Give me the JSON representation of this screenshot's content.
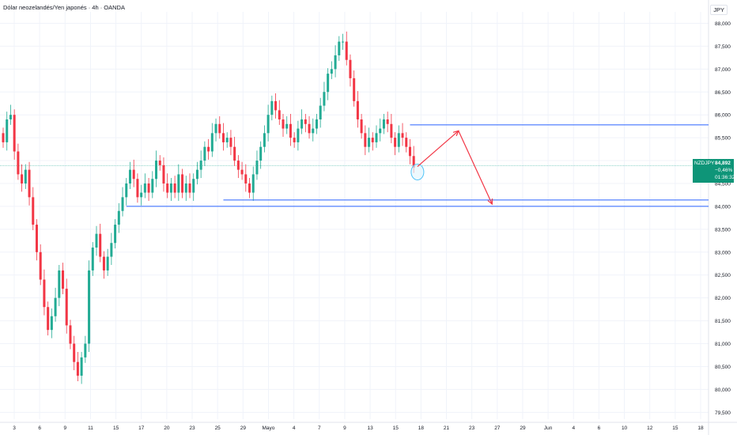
{
  "header": {
    "title": "Dólar neozelandés/Yen japonés · 4h · OANDA",
    "currency": "JPY"
  },
  "badge": {
    "symbol": "NZDJPY",
    "price": "84,892",
    "change": "−0,46%",
    "countdown": "01:36:32"
  },
  "colors": {
    "up": "#22ab94",
    "down": "#f23645",
    "level_line": "#2962ff",
    "arrow": "#f23645",
    "circle": "#4fc3f7",
    "price_line": "#22ab94",
    "grid": "#f0f3fa"
  },
  "chart_data": {
    "type": "candlestick",
    "title": "Dólar neozelandés/Yen japonés · 4h · OANDA",
    "y_unit": "JPY",
    "ylim": [
      79.35,
      88.25
    ],
    "y_ticks": [
      "88,000",
      "87,500",
      "87,000",
      "86,500",
      "86,000",
      "85,500",
      "85,000",
      "84,500",
      "84,000",
      "83,500",
      "83,000",
      "82,500",
      "82,000",
      "81,500",
      "81,000",
      "80,500",
      "80,000",
      "79,500"
    ],
    "x_ticks": [
      "3",
      "6",
      "9",
      "11",
      "15",
      "17",
      "20",
      "23",
      "25",
      "29",
      "Mayo",
      "4",
      "7",
      "9",
      "13",
      "15",
      "18",
      "21",
      "23",
      "27",
      "29",
      "Jun",
      "4",
      "6",
      "10",
      "12",
      "15",
      "18"
    ],
    "last_price": 84.892,
    "closes": [
      85.4,
      85.9,
      86.0,
      85.2,
      84.7,
      84.5,
      84.8,
      84.2,
      83.6,
      83.0,
      82.4,
      81.8,
      81.3,
      81.6,
      82.0,
      82.6,
      82.2,
      81.4,
      81.0,
      80.6,
      80.3,
      80.7,
      81.0,
      82.6,
      83.1,
      83.4,
      82.9,
      82.6,
      82.9,
      83.2,
      83.6,
      83.9,
      84.2,
      84.5,
      84.8,
      84.6,
      84.2,
      84.3,
      84.5,
      84.3,
      84.6,
      85.0,
      84.9,
      84.5,
      84.3,
      84.5,
      84.3,
      84.7,
      84.3,
      84.5,
      84.3,
      84.6,
      84.8,
      85.0,
      85.3,
      85.2,
      85.6,
      85.8,
      85.6,
      85.4,
      85.5,
      85.3,
      85.0,
      84.8,
      84.7,
      84.5,
      84.3,
      84.7,
      85.0,
      85.3,
      85.6,
      86.0,
      86.3,
      86.1,
      85.9,
      85.7,
      85.8,
      85.5,
      85.4,
      85.7,
      85.9,
      85.8,
      85.6,
      85.7,
      85.9,
      86.2,
      86.5,
      86.9,
      87.0,
      87.3,
      87.6,
      87.6,
      87.2,
      86.8,
      86.3,
      85.9,
      85.6,
      85.3,
      85.5,
      85.4,
      85.6,
      85.7,
      85.9,
      85.8,
      85.5,
      85.3,
      85.6,
      85.5,
      85.3,
      85.1,
      84.85
    ],
    "levels": [
      {
        "from_index": 109,
        "value": 85.78
      },
      {
        "from_index": 59,
        "value": 84.14
      },
      {
        "from_index": 33,
        "value": 84.0
      }
    ],
    "projection": [
      {
        "index": 111,
        "value": 84.87
      },
      {
        "index": 122,
        "value": 85.65
      },
      {
        "index": 131,
        "value": 84.05
      }
    ],
    "marked_low": {
      "index": 111,
      "value": 84.75
    }
  }
}
